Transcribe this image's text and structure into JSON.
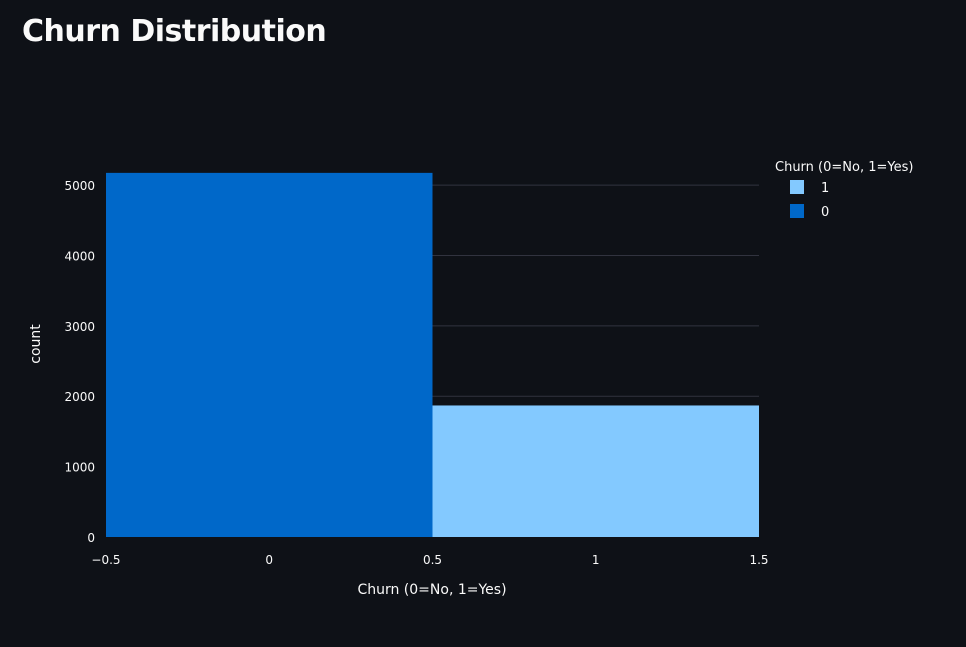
{
  "page": {
    "title": "Churn Distribution"
  },
  "chart_data": {
    "type": "bar",
    "title": "",
    "xlabel": "Churn (0=No, 1=Yes)",
    "ylabel": "count",
    "xlim": [
      -0.5,
      1.5
    ],
    "ylim": [
      0,
      5300
    ],
    "x_ticks": [
      -0.5,
      0,
      0.5,
      1,
      1.5
    ],
    "x_tick_labels": [
      "−0.5",
      "0",
      "0.5",
      "1",
      "1.5"
    ],
    "y_ticks": [
      0,
      1000,
      2000,
      3000,
      4000,
      5000
    ],
    "y_tick_labels": [
      "0",
      "1000",
      "2000",
      "3000",
      "4000",
      "5000"
    ],
    "grid": true,
    "legend": {
      "title": "Churn (0=No, 1=Yes)",
      "position": "top-right",
      "entries": [
        {
          "label": "1",
          "color": "#83c9ff"
        },
        {
          "label": "0",
          "color": "#0068c9"
        }
      ]
    },
    "series": [
      {
        "name": "1",
        "x0": 0.5,
        "x1": 1.5,
        "value": 1869,
        "color": "#83c9ff"
      },
      {
        "name": "0",
        "x0": -0.5,
        "x1": 0.5,
        "value": 5174,
        "color": "#0068c9"
      }
    ],
    "colors": {
      "background": "#0e1117",
      "grid": "#31333f",
      "text": "#fafafa"
    }
  }
}
